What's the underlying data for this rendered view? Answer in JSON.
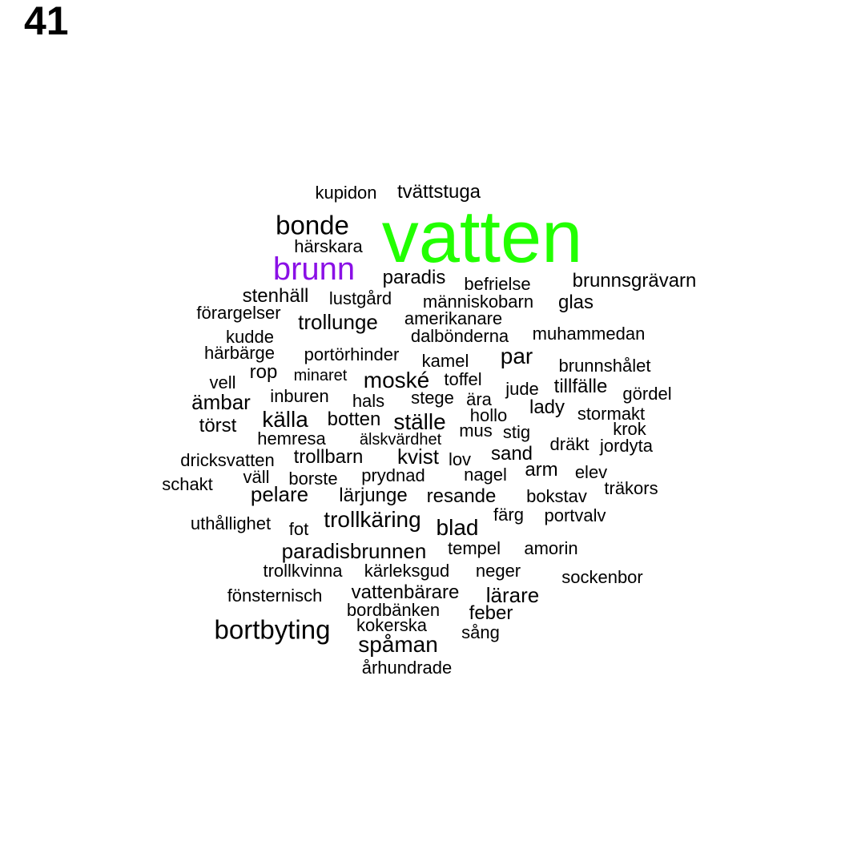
{
  "panel_number": "41",
  "colors": {
    "highlight_primary": "#22ff00",
    "highlight_secondary": "#8a10e6",
    "default": "#000000"
  },
  "words": [
    {
      "text": "vatten",
      "color": "#22ff00"
    },
    {
      "text": "brunn",
      "color": "#8a10e6"
    },
    {
      "text": "bonde"
    },
    {
      "text": "bortbyting"
    },
    {
      "text": "kupidon"
    },
    {
      "text": "tvättstuga"
    },
    {
      "text": "härskara"
    },
    {
      "text": "paradis"
    },
    {
      "text": "befrielse"
    },
    {
      "text": "brunnsgrävarn"
    },
    {
      "text": "stenhäll"
    },
    {
      "text": "lustgård"
    },
    {
      "text": "människobarn"
    },
    {
      "text": "glas"
    },
    {
      "text": "förargelser"
    },
    {
      "text": "trollunge"
    },
    {
      "text": "amerikanare"
    },
    {
      "text": "kudde"
    },
    {
      "text": "dalbönderna"
    },
    {
      "text": "muhammedan"
    },
    {
      "text": "härbärge"
    },
    {
      "text": "portörhinder"
    },
    {
      "text": "kamel"
    },
    {
      "text": "par"
    },
    {
      "text": "brunnshålet"
    },
    {
      "text": "vell"
    },
    {
      "text": "rop"
    },
    {
      "text": "minaret"
    },
    {
      "text": "moské"
    },
    {
      "text": "toffel"
    },
    {
      "text": "jude"
    },
    {
      "text": "tillfälle"
    },
    {
      "text": "gördel"
    },
    {
      "text": "ämbar"
    },
    {
      "text": "inburen"
    },
    {
      "text": "hals"
    },
    {
      "text": "stege"
    },
    {
      "text": "ära"
    },
    {
      "text": "lady"
    },
    {
      "text": "stormakt"
    },
    {
      "text": "törst"
    },
    {
      "text": "källa"
    },
    {
      "text": "botten"
    },
    {
      "text": "ställe"
    },
    {
      "text": "hollo"
    },
    {
      "text": "krok"
    },
    {
      "text": "hemresa"
    },
    {
      "text": "älskvärdhet"
    },
    {
      "text": "mus"
    },
    {
      "text": "stig"
    },
    {
      "text": "dräkt"
    },
    {
      "text": "jordyta"
    },
    {
      "text": "dricksvatten"
    },
    {
      "text": "trollbarn"
    },
    {
      "text": "kvist"
    },
    {
      "text": "lov"
    },
    {
      "text": "sand"
    },
    {
      "text": "arm"
    },
    {
      "text": "elev"
    },
    {
      "text": "schakt"
    },
    {
      "text": "väll"
    },
    {
      "text": "borste"
    },
    {
      "text": "prydnad"
    },
    {
      "text": "nagel"
    },
    {
      "text": "träkors"
    },
    {
      "text": "pelare"
    },
    {
      "text": "lärjunge"
    },
    {
      "text": "resande"
    },
    {
      "text": "bokstav"
    },
    {
      "text": "färg"
    },
    {
      "text": "portvalv"
    },
    {
      "text": "uthållighet"
    },
    {
      "text": "fot"
    },
    {
      "text": "trollkäring"
    },
    {
      "text": "blad"
    },
    {
      "text": "paradisbrunnen"
    },
    {
      "text": "tempel"
    },
    {
      "text": "amorin"
    },
    {
      "text": "trollkvinna"
    },
    {
      "text": "kärleksgud"
    },
    {
      "text": "neger"
    },
    {
      "text": "sockenbor"
    },
    {
      "text": "fönsternisch"
    },
    {
      "text": "vattenbärare"
    },
    {
      "text": "lärare"
    },
    {
      "text": "bordbänken"
    },
    {
      "text": "feber"
    },
    {
      "text": "kokerska"
    },
    {
      "text": "spåman"
    },
    {
      "text": "sång"
    },
    {
      "text": "århundrade"
    }
  ]
}
